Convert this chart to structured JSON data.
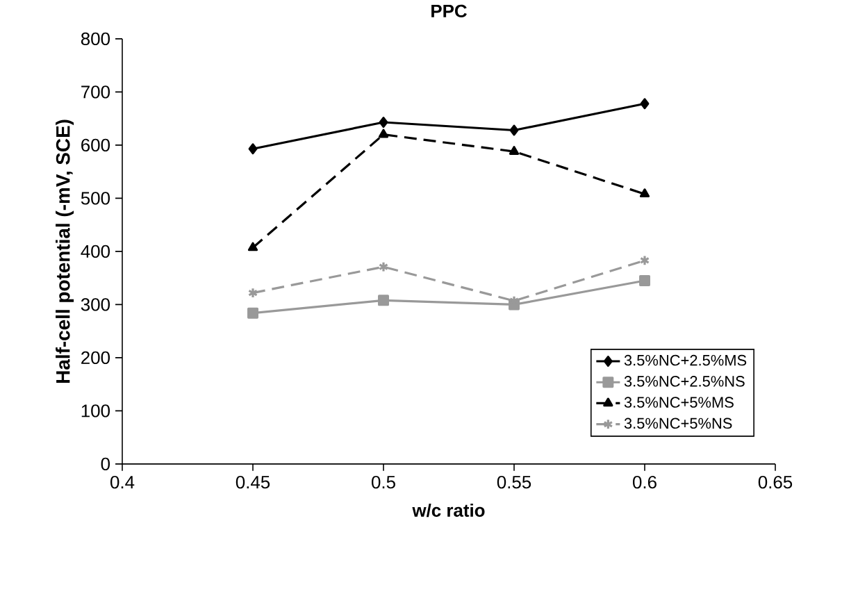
{
  "chart_data": {
    "type": "line",
    "title": "PPC",
    "xlabel": "w/c ratio",
    "ylabel": "Half-cell potential (-mV, SCE)",
    "x": [
      0.45,
      0.5,
      0.55,
      0.6
    ],
    "series": [
      {
        "name": "3.5%NC+2.5%MS",
        "color": "#000000",
        "marker": "diamond",
        "line_style": "solid",
        "values": [
          593,
          643,
          628,
          678
        ]
      },
      {
        "name": "3.5%NC+2.5%NS",
        "color": "#999999",
        "marker": "square",
        "line_style": "solid",
        "values": [
          284,
          308,
          300,
          345
        ]
      },
      {
        "name": "3.5%NC+5%MS",
        "color": "#000000",
        "marker": "triangle",
        "line_style": "dashed",
        "values": [
          407,
          620,
          588,
          508
        ]
      },
      {
        "name": "3.5%NC+5%NS",
        "color": "#999999",
        "marker": "cross",
        "line_style": "dashed",
        "values": [
          322,
          371,
          307,
          383
        ]
      }
    ],
    "xlim": [
      0.4,
      0.65
    ],
    "xticks": [
      0.4,
      0.45,
      0.5,
      0.55,
      0.6,
      0.65
    ],
    "ylim": [
      0,
      800
    ],
    "yticks": [
      0,
      100,
      200,
      300,
      400,
      500,
      600,
      700,
      800
    ],
    "grid": false,
    "legend": "right"
  }
}
